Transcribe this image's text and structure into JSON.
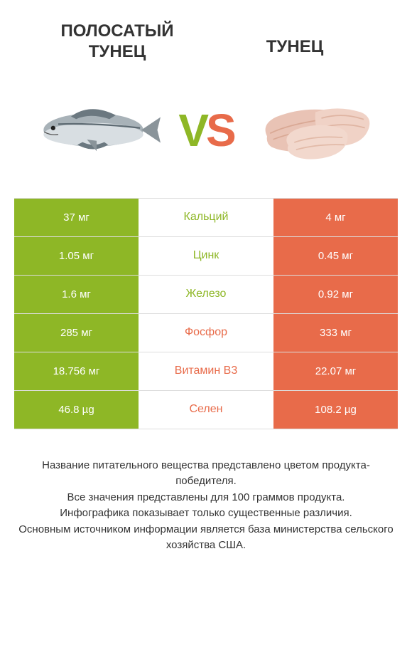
{
  "colors": {
    "left_product": "#8eb726",
    "right_product": "#e86b4a",
    "row_border": "#dddddd",
    "text": "#333333",
    "white": "#ffffff"
  },
  "header": {
    "left_title": "Полосатый\nтунец",
    "right_title": "Тунец"
  },
  "vs": {
    "v": "V",
    "s": "S"
  },
  "comparison": {
    "type": "table",
    "columns": [
      "left_value",
      "nutrient",
      "right_value"
    ],
    "rows": [
      {
        "left": "37 мг",
        "label": "Кальций",
        "right": "4 мг",
        "winner": "left"
      },
      {
        "left": "1.05 мг",
        "label": "Цинк",
        "right": "0.45 мг",
        "winner": "left"
      },
      {
        "left": "1.6 мг",
        "label": "Железо",
        "right": "0.92 мг",
        "winner": "left"
      },
      {
        "left": "285 мг",
        "label": "Фосфор",
        "right": "333 мг",
        "winner": "right"
      },
      {
        "left": "18.756 мг",
        "label": "Витамин B3",
        "right": "22.07 мг",
        "winner": "right"
      },
      {
        "left": "46.8 µg",
        "label": "Селен",
        "right": "108.2 µg",
        "winner": "right"
      }
    ]
  },
  "footer": {
    "line1": "Название питательного вещества представлено цветом продукта-победителя.",
    "line2": "Все значения представлены для 100 граммов продукта.",
    "line3": "Инфографика показывает только существенные различия.",
    "line4": "Основным источником информации является база министерства сельского хозяйства США."
  }
}
